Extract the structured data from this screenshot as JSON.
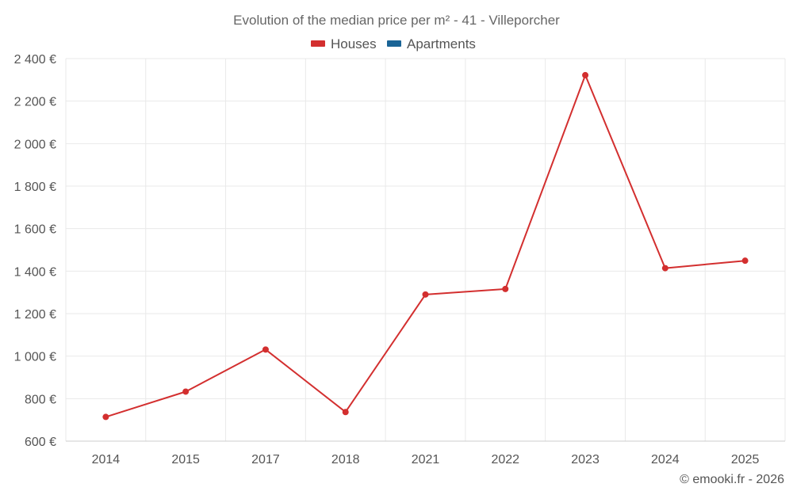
{
  "chart_data": {
    "type": "line",
    "title": "Evolution of the median price per m² - 41 - Villeporcher",
    "categories": [
      "2014",
      "2015",
      "2017",
      "2018",
      "2021",
      "2022",
      "2023",
      "2024",
      "2025"
    ],
    "series": [
      {
        "name": "Houses",
        "color": "#d32f2f",
        "values": [
          714,
          833,
          1031,
          737,
          1290,
          1316,
          2322,
          1414,
          1449
        ]
      },
      {
        "name": "Apartments",
        "color": "#1a6496",
        "values": [
          null,
          null,
          null,
          null,
          null,
          null,
          null,
          null,
          null
        ]
      }
    ],
    "ylim": [
      600,
      2400
    ],
    "y_ticks": [
      600,
      800,
      1000,
      1200,
      1400,
      1600,
      1800,
      2000,
      2200,
      2400
    ],
    "y_tick_labels": [
      "600 €",
      "800 €",
      "1 000 €",
      "1 200 €",
      "1 400 €",
      "1 600 €",
      "1 800 €",
      "2 000 €",
      "2 200 €",
      "2 400 €"
    ],
    "xlabel": "",
    "ylabel": "",
    "grid": true,
    "legend_position": "top-center"
  },
  "credit": "© emooki.fr - 2026"
}
